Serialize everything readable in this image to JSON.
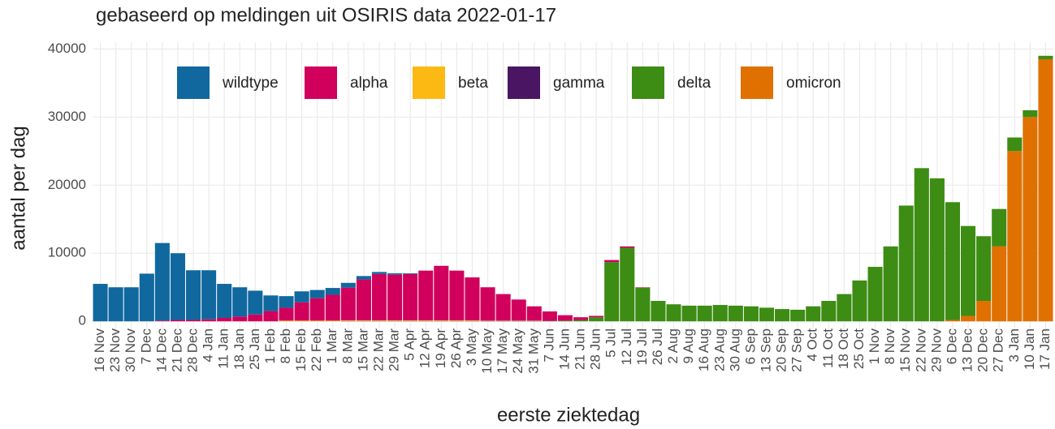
{
  "chart_data": {
    "type": "stacked_bar",
    "title": "gebaseerd op meldingen uit OSIRIS data 2022-01-17",
    "x_label": "eerste ziektedag",
    "y_label": "aantal per dag",
    "categories": [
      "16 Nov",
      "23 Nov",
      "30 Nov",
      "7 Dec",
      "14 Dec",
      "21 Dec",
      "28 Dec",
      "4 Jan",
      "11 Jan",
      "18 Jan",
      "25 Jan",
      "1 Feb",
      "8 Feb",
      "15 Feb",
      "22 Feb",
      "1 Mar",
      "8 Mar",
      "15 Mar",
      "22 Mar",
      "29 Mar",
      "5 Apr",
      "12 Apr",
      "19 Apr",
      "26 Apr",
      "3 May",
      "10 May",
      "17 May",
      "24 May",
      "31 May",
      "7 Jun",
      "14 Jun",
      "21 Jun",
      "28 Jun",
      "5 Jul",
      "12 Jul",
      "19 Jul",
      "26 Jul",
      "2 Aug",
      "9 Aug",
      "16 Aug",
      "23 Aug",
      "30 Aug",
      "6 Sep",
      "13 Sep",
      "20 Sep",
      "27 Sep",
      "4 Oct",
      "11 Oct",
      "18 Oct",
      "25 Oct",
      "1 Nov",
      "8 Nov",
      "15 Nov",
      "22 Nov",
      "29 Nov",
      "6 Dec",
      "13 Dec",
      "20 Dec",
      "27 Dec",
      "3 Jan",
      "10 Jan",
      "17 Jan"
    ],
    "series": [
      {
        "name": "wildtype",
        "color": "#10689f",
        "values": [
          5500,
          5000,
          5000,
          7000,
          11400,
          9800,
          7300,
          7200,
          5000,
          4300,
          3500,
          2300,
          1700,
          1600,
          1200,
          1000,
          700,
          500,
          300,
          200,
          100,
          0,
          0,
          0,
          0,
          0,
          0,
          0,
          0,
          0,
          0,
          0,
          0,
          0,
          0,
          0,
          0,
          0,
          0,
          0,
          0,
          0,
          0,
          0,
          0,
          0,
          0,
          0,
          0,
          0,
          0,
          0,
          0,
          0,
          0,
          0,
          0,
          0,
          0,
          0,
          0,
          0
        ]
      },
      {
        "name": "alpha",
        "color": "#d0005c",
        "values": [
          0,
          0,
          0,
          0,
          100,
          200,
          200,
          300,
          500,
          700,
          1000,
          1500,
          1900,
          2700,
          3300,
          3800,
          4800,
          6000,
          6800,
          6700,
          6800,
          7300,
          8000,
          7300,
          6300,
          4900,
          3900,
          3100,
          2100,
          1400,
          800,
          400,
          200,
          300,
          200,
          50,
          0,
          0,
          0,
          0,
          0,
          0,
          0,
          0,
          0,
          0,
          0,
          0,
          0,
          0,
          0,
          0,
          0,
          0,
          0,
          0,
          0,
          0,
          0,
          0,
          0,
          0
        ]
      },
      {
        "name": "beta",
        "color": "#fdb913",
        "values": [
          0,
          0,
          0,
          0,
          0,
          0,
          0,
          0,
          0,
          0,
          0,
          0,
          100,
          100,
          100,
          100,
          100,
          100,
          100,
          100,
          100,
          100,
          100,
          100,
          100,
          50,
          50,
          50,
          50,
          0,
          0,
          0,
          0,
          0,
          0,
          0,
          0,
          0,
          0,
          0,
          0,
          0,
          0,
          0,
          0,
          0,
          0,
          0,
          0,
          0,
          0,
          0,
          0,
          0,
          0,
          0,
          0,
          0,
          0,
          0,
          0,
          0
        ]
      },
      {
        "name": "gamma",
        "color": "#4a1562",
        "values": [
          0,
          0,
          0,
          0,
          0,
          0,
          0,
          0,
          0,
          0,
          0,
          0,
          0,
          0,
          0,
          0,
          50,
          50,
          50,
          50,
          50,
          50,
          50,
          50,
          50,
          50,
          50,
          50,
          50,
          0,
          0,
          0,
          0,
          0,
          0,
          0,
          0,
          0,
          0,
          0,
          0,
          0,
          0,
          0,
          0,
          0,
          0,
          0,
          0,
          0,
          0,
          0,
          0,
          0,
          0,
          0,
          0,
          0,
          0,
          0,
          0,
          0
        ]
      },
      {
        "name": "delta",
        "color": "#3d8c14",
        "values": [
          0,
          0,
          0,
          0,
          0,
          0,
          0,
          0,
          0,
          0,
          0,
          0,
          0,
          0,
          0,
          0,
          0,
          0,
          0,
          0,
          0,
          0,
          0,
          0,
          0,
          0,
          0,
          0,
          0,
          50,
          100,
          200,
          600,
          8700,
          10800,
          4950,
          3000,
          2500,
          2300,
          2300,
          2400,
          2300,
          2200,
          2000,
          1800,
          1700,
          2200,
          3000,
          4000,
          6000,
          8000,
          11000,
          17000,
          22500,
          21000,
          17300,
          13200,
          9500,
          5500,
          2000,
          1000,
          500
        ]
      },
      {
        "name": "omicron",
        "color": "#e07000",
        "values": [
          0,
          0,
          0,
          0,
          0,
          0,
          0,
          0,
          0,
          0,
          0,
          0,
          0,
          0,
          0,
          0,
          0,
          0,
          0,
          0,
          0,
          0,
          0,
          0,
          0,
          0,
          0,
          0,
          0,
          0,
          0,
          0,
          0,
          0,
          0,
          0,
          0,
          0,
          0,
          0,
          0,
          0,
          0,
          0,
          0,
          0,
          0,
          0,
          0,
          0,
          0,
          0,
          0,
          0,
          0,
          200,
          800,
          3000,
          11000,
          25000,
          30000,
          38500
        ]
      }
    ],
    "ylim": [
      -2000,
      41000
    ],
    "yticks": [
      0,
      10000,
      20000,
      30000,
      40000
    ],
    "grid": true,
    "legend": "top"
  }
}
